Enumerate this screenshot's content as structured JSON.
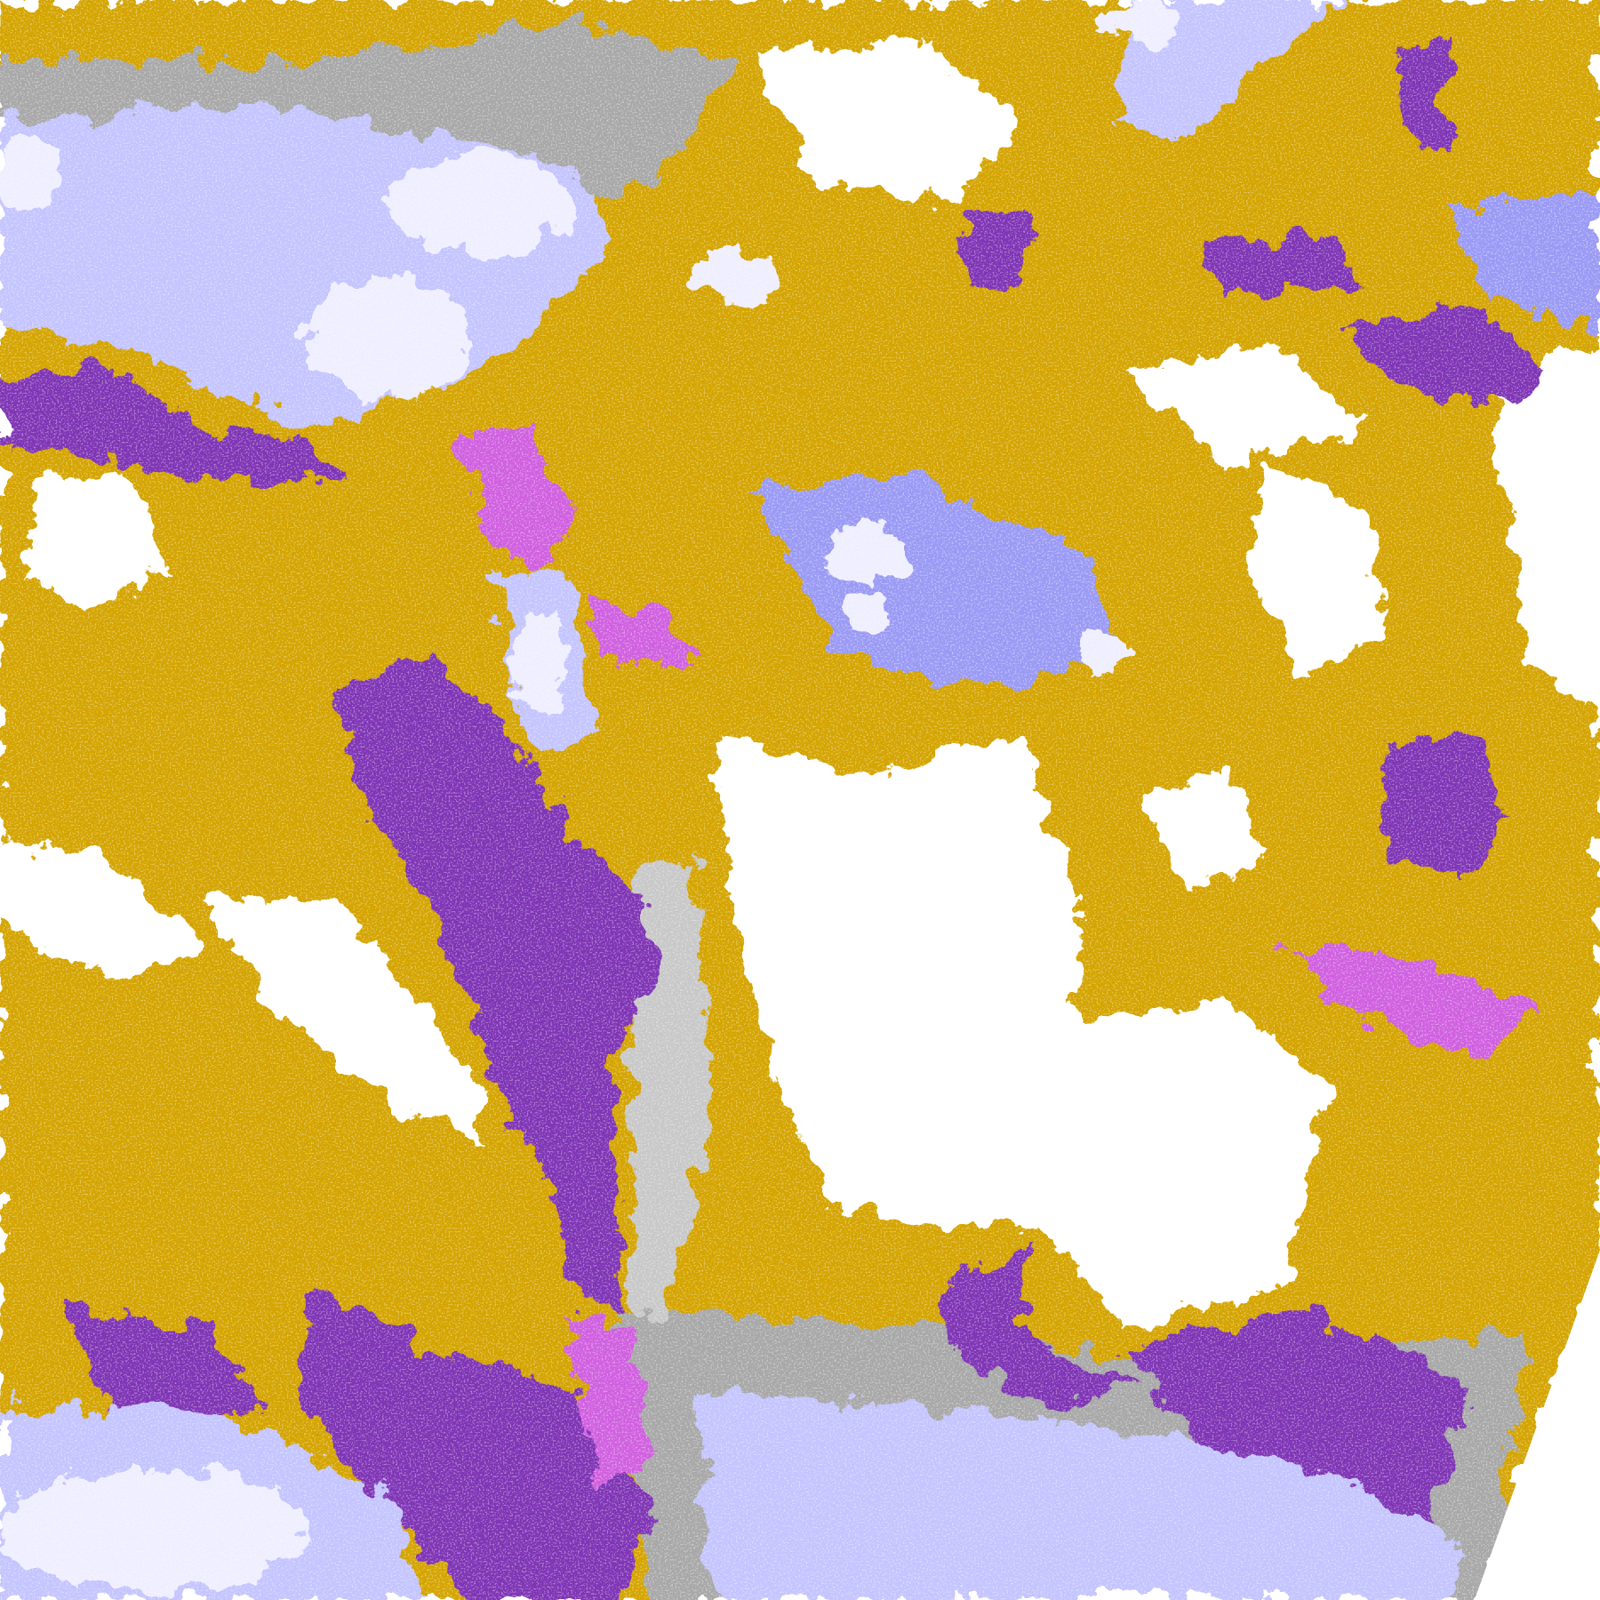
{
  "image": {
    "kind": "satellite cloud-type classification",
    "colors": {
      "background": "#ffffff",
      "gold": "#d4a400",
      "dark_gold": "#b08800",
      "purple": "#7f35b5",
      "magenta": "#d060e0",
      "lavender": "#eeeeff",
      "periwinkle": "#c4c4ff",
      "blue_violet": "#9a9af5",
      "gray": "#a8a8a8",
      "light_gray": "#c8c8c8"
    }
  }
}
